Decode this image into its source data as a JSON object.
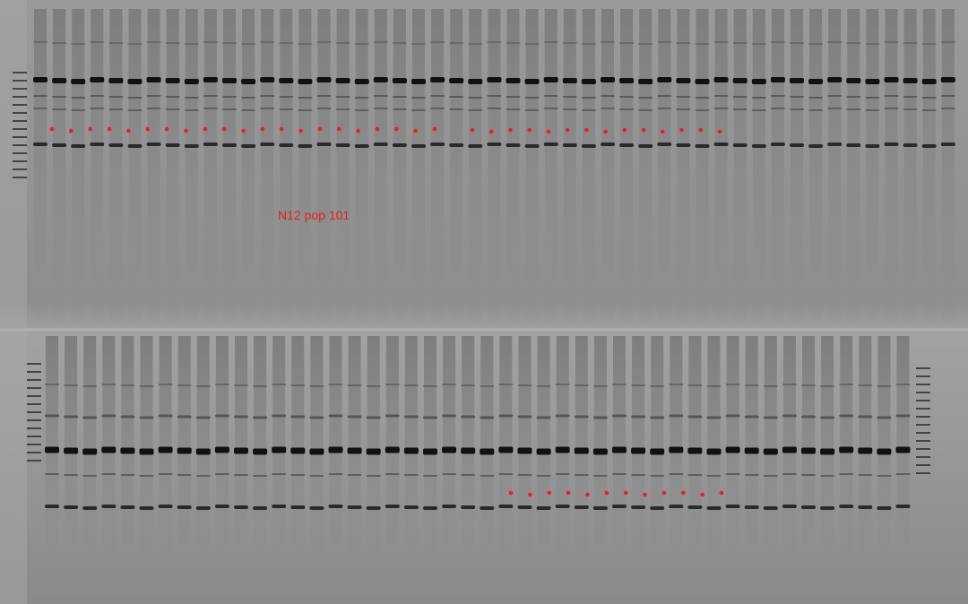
{
  "annotation": "N12 pop 101"
}
